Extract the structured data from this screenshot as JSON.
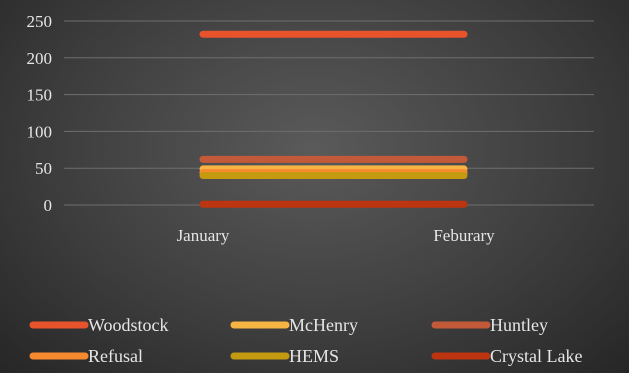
{
  "chart_data": {
    "type": "line",
    "categories": [
      "January",
      "Feburary"
    ],
    "ylim": [
      0,
      250
    ],
    "yticks": [
      0,
      50,
      100,
      150,
      200,
      250
    ],
    "grid": true,
    "legend_position": "bottom",
    "series": [
      {
        "name": "Woodstock",
        "values": [
          232,
          232
        ],
        "color": "#e8532b"
      },
      {
        "name": "McHenry",
        "values": [
          49,
          49
        ],
        "color": "#f6b443"
      },
      {
        "name": "Huntley",
        "values": [
          62,
          62
        ],
        "color": "#c25a3a"
      },
      {
        "name": "Refusal",
        "values": [
          44,
          44
        ],
        "color": "#f7892f"
      },
      {
        "name": "HEMS",
        "values": [
          40,
          40
        ],
        "color": "#c39a10"
      },
      {
        "name": "Crystal Lake",
        "values": [
          1,
          1
        ],
        "color": "#bc3510"
      }
    ]
  }
}
